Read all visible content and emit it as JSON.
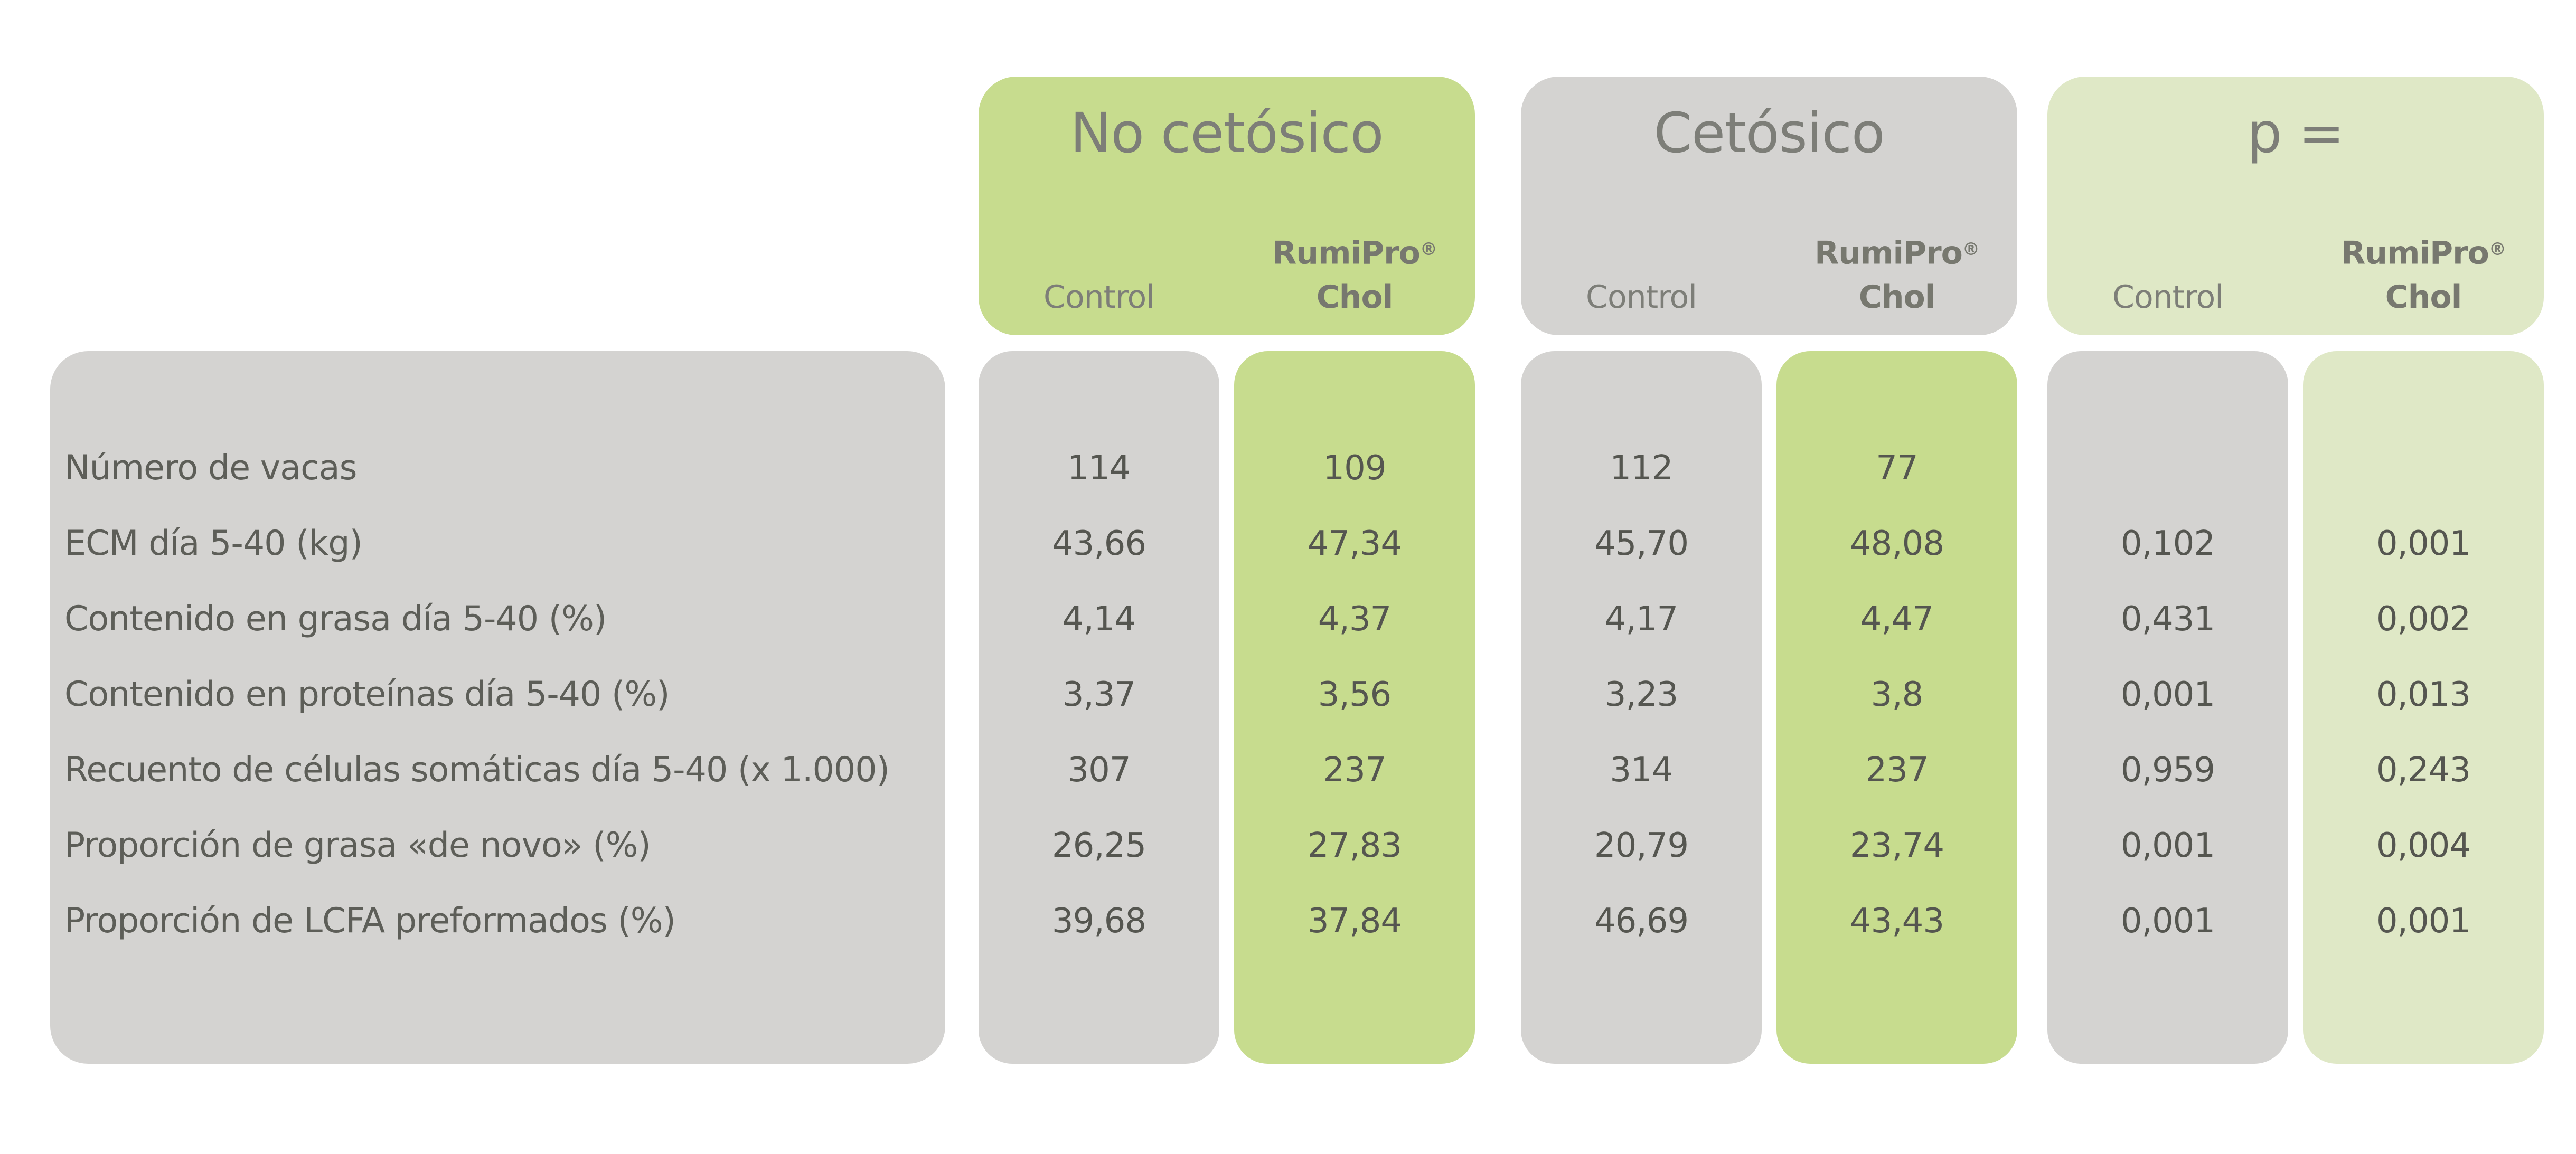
{
  "groups": [
    {
      "title": "No cetósico",
      "control_label": "Control",
      "product_name": "RumiPro",
      "registered_mark": "®",
      "product_variant": "Chol"
    },
    {
      "title": "Cetósico",
      "control_label": "Control",
      "product_name": "RumiPro",
      "registered_mark": "®",
      "product_variant": "Chol"
    },
    {
      "title": "p =",
      "control_label": "Control",
      "product_name": "RumiPro",
      "registered_mark": "®",
      "product_variant": "Chol"
    }
  ],
  "rows": [
    {
      "label": "Número de vacas",
      "values": [
        "114",
        "109",
        "112",
        "77",
        "",
        ""
      ]
    },
    {
      "label": "ECM día 5-40 (kg)",
      "values": [
        "43,66",
        "47,34",
        "45,70",
        "48,08",
        "0,102",
        "0,001"
      ]
    },
    {
      "label": "Contenido en grasa día 5-40 (%)",
      "values": [
        "4,14",
        "4,37",
        "4,17",
        "4,47",
        "0,431",
        "0,002"
      ]
    },
    {
      "label": "Contenido en proteínas día 5-40 (%)",
      "values": [
        "3,37",
        "3,56",
        "3,23",
        "3,8",
        "0,001",
        "0,013"
      ]
    },
    {
      "label": "Recuento de células somáticas día 5-40 (x 1.000)",
      "values": [
        "307",
        "237",
        "314",
        "237",
        "0,959",
        "0,243"
      ]
    },
    {
      "label": "Proporción de grasa «de novo» (%)",
      "values": [
        "26,25",
        "27,83",
        "20,79",
        "23,74",
        "0,001",
        "0,004"
      ]
    },
    {
      "label": "Proporción de LCFA preformados (%)",
      "values": [
        "39,68",
        "37,84",
        "46,69",
        "43,43",
        "0,001",
        "0,001"
      ]
    }
  ],
  "colors": {
    "accent_green": "#c7dc8e",
    "neutral_gray": "#d4d3d1",
    "pale_green": "#dfe8c6",
    "header_text": "#7d7e78",
    "label_text": "#5d5e58",
    "value_text": "#555650"
  },
  "chart_data": {
    "type": "table",
    "column_groups": [
      "No cetósico",
      "Cetósico",
      "p ="
    ],
    "columns": [
      "No cetósico Control",
      "No cetósico RumiPro® Chol",
      "Cetósico Control",
      "Cetósico RumiPro® Chol",
      "p = Control",
      "p = RumiPro® Chol"
    ],
    "row_labels": [
      "Número de vacas",
      "ECM día 5-40 (kg)",
      "Contenido en grasa día 5-40 (%)",
      "Contenido en proteínas día 5-40 (%)",
      "Recuento de células somáticas día 5-40 (x 1.000)",
      "Proporción de grasa «de novo» (%)",
      "Proporción de LCFA preformados (%)"
    ],
    "values": [
      [
        114,
        109,
        112,
        77,
        null,
        null
      ],
      [
        43.66,
        47.34,
        45.7,
        48.08,
        0.102,
        0.001
      ],
      [
        4.14,
        4.37,
        4.17,
        4.47,
        0.431,
        0.002
      ],
      [
        3.37,
        3.56,
        3.23,
        3.8,
        0.001,
        0.013
      ],
      [
        307,
        237,
        314,
        237,
        0.959,
        0.243
      ],
      [
        26.25,
        27.83,
        20.79,
        23.74,
        0.001,
        0.004
      ],
      [
        39.68,
        37.84,
        46.69,
        43.43,
        0.001,
        0.001
      ]
    ]
  }
}
